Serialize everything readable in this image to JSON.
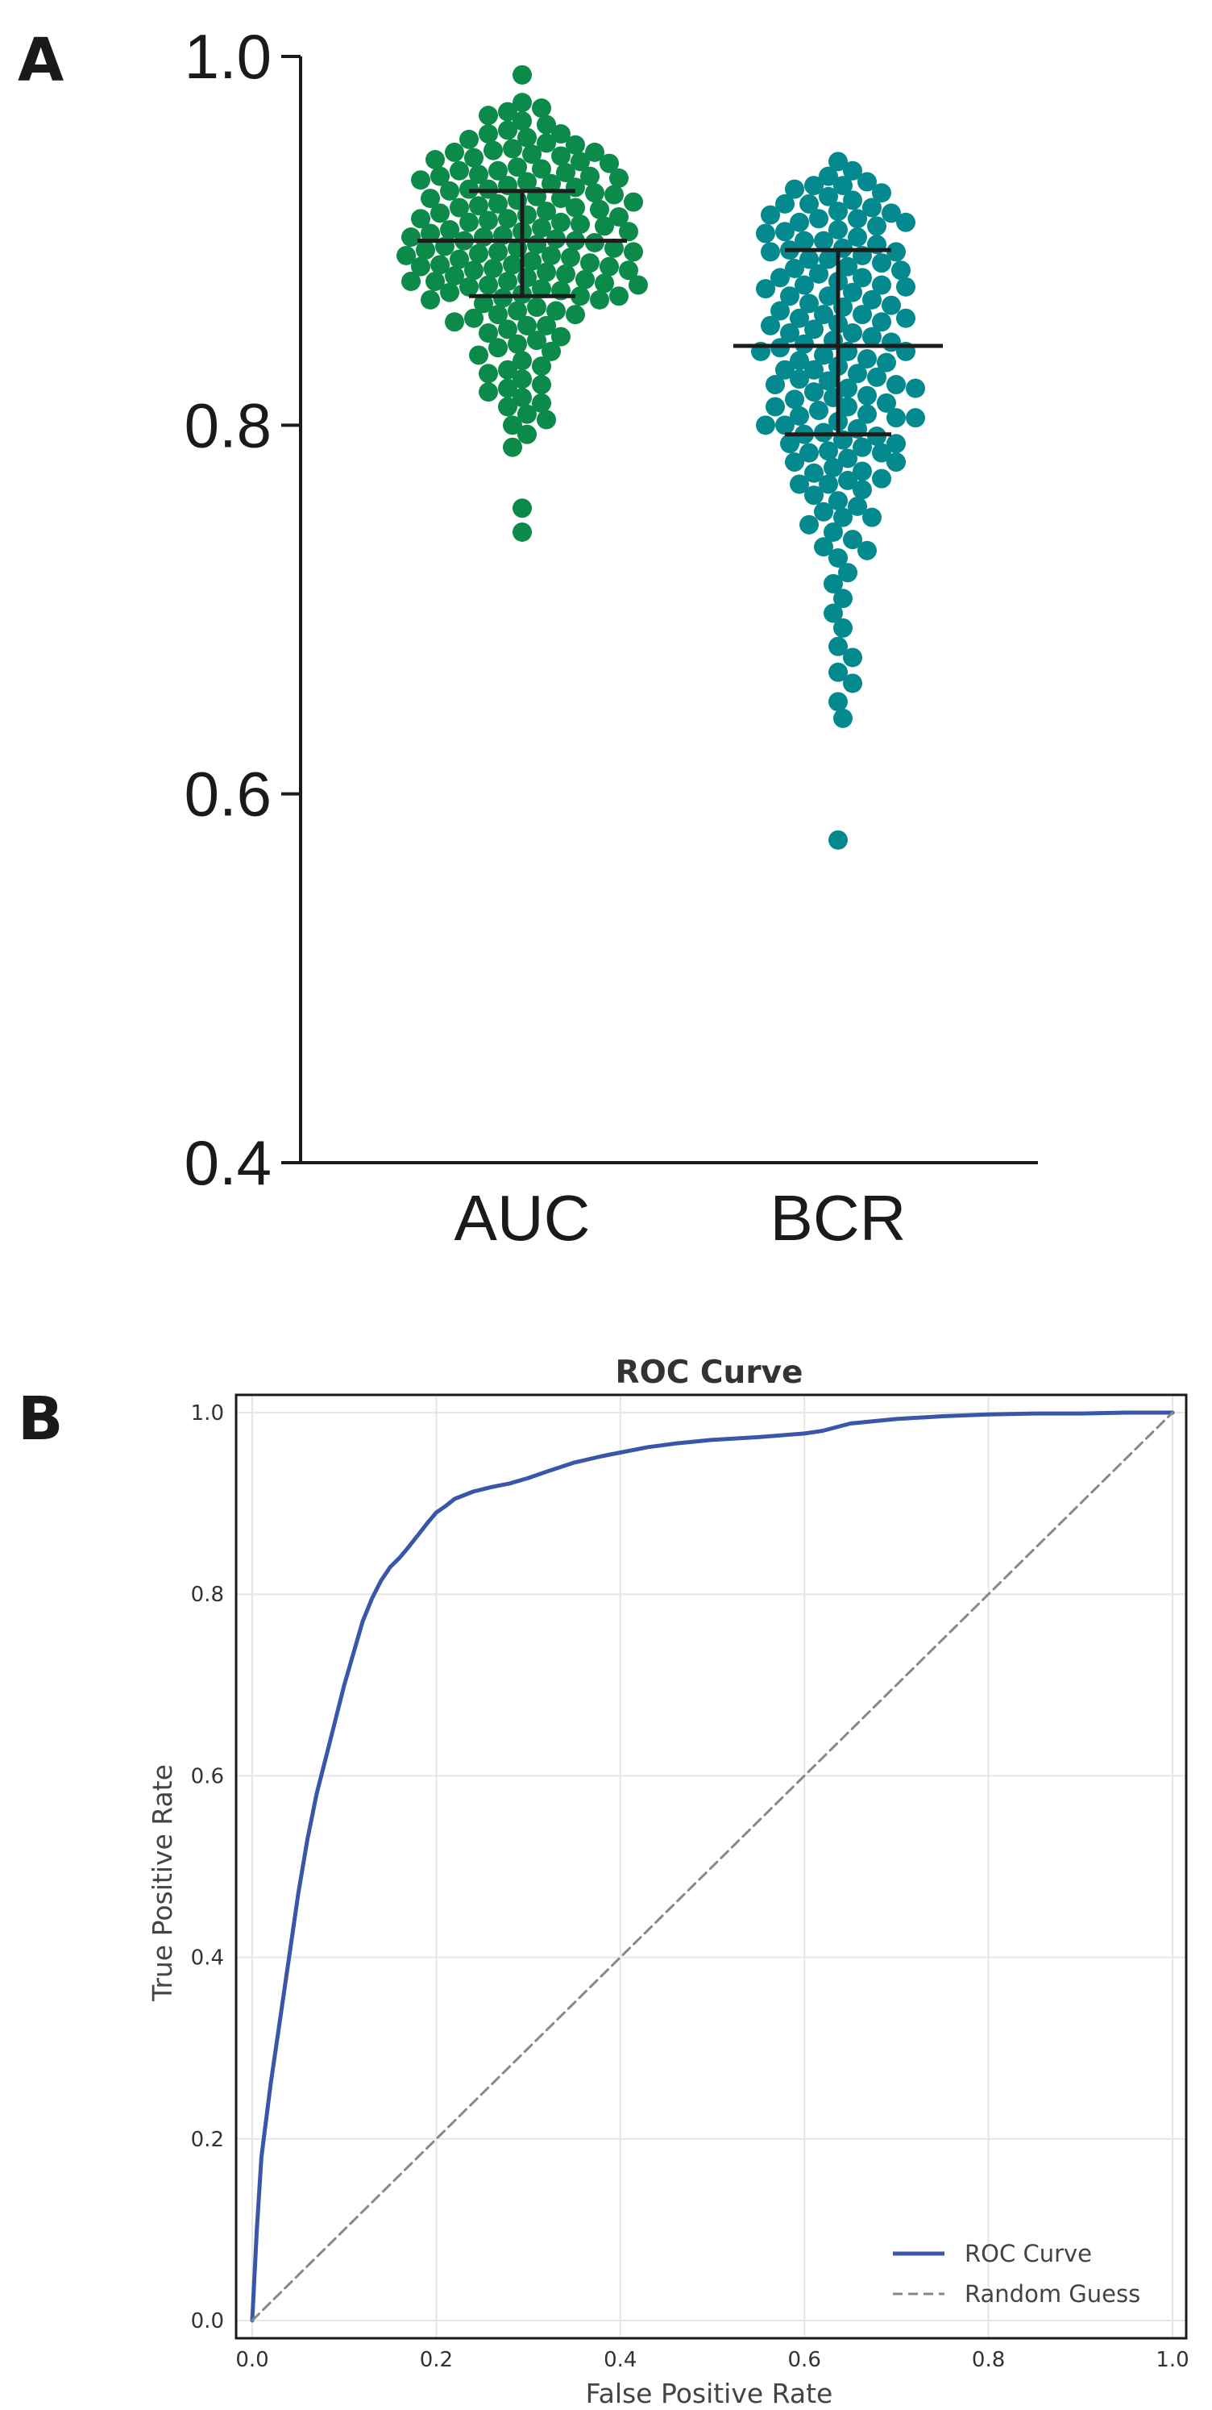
{
  "colors": {
    "auc": "#0b8a4a",
    "bcr": "#048a8e",
    "roc": "#3a56a8",
    "random": "#888888",
    "errorbar": "#1c1c1c",
    "grid": "#e6e6e6"
  },
  "panels": {
    "a_label": "A",
    "b_label": "B"
  },
  "chart_data": [
    {
      "type": "scatter",
      "subtype": "dot-plot with mean and SD error bars",
      "ylim": [
        0.4,
        1.0
      ],
      "yticks": [
        "0.4",
        "0.6",
        "0.8",
        "1.0"
      ],
      "categories": [
        "AUC",
        "BCR"
      ],
      "series": [
        {
          "name": "AUC",
          "mean": 0.9,
          "sd_low": 0.87,
          "sd_high": 0.927,
          "values": [
            0.99,
            0.975,
            0.972,
            0.97,
            0.968,
            0.965,
            0.963,
            0.96,
            0.958,
            0.956,
            0.955,
            0.953,
            0.952,
            0.95,
            0.949,
            0.948,
            0.947,
            0.945,
            0.944,
            0.943,
            0.942,
            0.94,
            0.939,
            0.938,
            0.937,
            0.936,
            0.935,
            0.934,
            0.933,
            0.932,
            0.931,
            0.93,
            0.929,
            0.928,
            0.927,
            0.926,
            0.925,
            0.924,
            0.923,
            0.922,
            0.921,
            0.92,
            0.919,
            0.918,
            0.917,
            0.916,
            0.915,
            0.914,
            0.913,
            0.912,
            0.911,
            0.91,
            0.909,
            0.908,
            0.907,
            0.906,
            0.905,
            0.904,
            0.903,
            0.902,
            0.901,
            0.9,
            0.899,
            0.898,
            0.897,
            0.896,
            0.895,
            0.894,
            0.893,
            0.892,
            0.891,
            0.89,
            0.889,
            0.888,
            0.887,
            0.886,
            0.885,
            0.884,
            0.883,
            0.882,
            0.881,
            0.88,
            0.879,
            0.878,
            0.877,
            0.876,
            0.875,
            0.874,
            0.873,
            0.872,
            0.871,
            0.87,
            0.868,
            0.866,
            0.864,
            0.862,
            0.86,
            0.858,
            0.856,
            0.854,
            0.852,
            0.85,
            0.848,
            0.846,
            0.844,
            0.842,
            0.84,
            0.838,
            0.835,
            0.832,
            0.83,
            0.828,
            0.825,
            0.822,
            0.82,
            0.818,
            0.815,
            0.812,
            0.81,
            0.806,
            0.803,
            0.8,
            0.795,
            0.788,
            0.755,
            0.742,
            0.912,
            0.905,
            0.896,
            0.887,
            0.878,
            0.869,
            0.923,
            0.935,
            0.946,
            0.9,
            0.892,
            0.884,
            0.876,
            0.868,
            0.86,
            0.918,
            0.928,
            0.938,
            0.948,
            0.958,
            0.91,
            0.902,
            0.894,
            0.886,
            0.878,
            0.87,
            0.862,
            0.854
          ],
          "color_key": "auc"
        },
        {
          "name": "BCR",
          "mean": 0.843,
          "sd_low": 0.795,
          "sd_high": 0.895,
          "values": [
            0.943,
            0.938,
            0.935,
            0.932,
            0.93,
            0.928,
            0.926,
            0.924,
            0.922,
            0.92,
            0.918,
            0.916,
            0.914,
            0.912,
            0.91,
            0.908,
            0.906,
            0.904,
            0.902,
            0.9,
            0.898,
            0.896,
            0.894,
            0.892,
            0.89,
            0.888,
            0.886,
            0.884,
            0.882,
            0.88,
            0.878,
            0.876,
            0.874,
            0.872,
            0.87,
            0.868,
            0.866,
            0.864,
            0.862,
            0.86,
            0.858,
            0.856,
            0.854,
            0.852,
            0.85,
            0.848,
            0.846,
            0.844,
            0.842,
            0.84,
            0.838,
            0.836,
            0.834,
            0.832,
            0.83,
            0.828,
            0.826,
            0.824,
            0.822,
            0.82,
            0.818,
            0.816,
            0.814,
            0.812,
            0.81,
            0.808,
            0.806,
            0.804,
            0.802,
            0.8,
            0.798,
            0.796,
            0.794,
            0.792,
            0.79,
            0.788,
            0.785,
            0.782,
            0.78,
            0.777,
            0.774,
            0.771,
            0.768,
            0.765,
            0.762,
            0.759,
            0.756,
            0.753,
            0.75,
            0.746,
            0.742,
            0.738,
            0.734,
            0.728,
            0.72,
            0.714,
            0.706,
            0.698,
            0.69,
            0.68,
            0.674,
            0.666,
            0.66,
            0.65,
            0.641,
            0.575,
            0.92,
            0.91,
            0.9,
            0.89,
            0.88,
            0.87,
            0.86,
            0.85,
            0.84,
            0.83,
            0.82,
            0.81,
            0.8,
            0.79,
            0.78,
            0.77,
            0.915,
            0.905,
            0.895,
            0.885,
            0.875,
            0.865,
            0.855,
            0.845,
            0.835,
            0.825,
            0.815,
            0.805,
            0.795,
            0.785,
            0.775,
            0.93,
            0.912,
            0.894,
            0.876,
            0.858,
            0.84,
            0.822,
            0.804,
            0.786,
            0.768,
            0.75,
            0.732
          ],
          "color_key": "bcr"
        }
      ]
    },
    {
      "type": "line",
      "title": "ROC Curve",
      "xlabel": "False Positive Rate",
      "ylabel": "True Positive Rate",
      "xlim": [
        0.0,
        1.0
      ],
      "ylim": [
        0.0,
        1.0
      ],
      "xticks": [
        "0.0",
        "0.2",
        "0.4",
        "0.6",
        "0.8",
        "1.0"
      ],
      "yticks": [
        "0.0",
        "0.2",
        "0.4",
        "0.6",
        "0.8",
        "1.0"
      ],
      "grid": true,
      "legend_position": "bottom-right",
      "series": [
        {
          "name": "ROC Curve",
          "style": "solid",
          "color_key": "roc",
          "x": [
            0.0,
            0.005,
            0.01,
            0.02,
            0.03,
            0.04,
            0.05,
            0.06,
            0.07,
            0.08,
            0.09,
            0.1,
            0.11,
            0.12,
            0.13,
            0.14,
            0.15,
            0.16,
            0.17,
            0.18,
            0.19,
            0.2,
            0.21,
            0.22,
            0.24,
            0.26,
            0.28,
            0.3,
            0.32,
            0.35,
            0.38,
            0.4,
            0.43,
            0.46,
            0.5,
            0.55,
            0.6,
            0.62,
            0.65,
            0.7,
            0.75,
            0.8,
            0.85,
            0.9,
            0.95,
            1.0
          ],
          "y": [
            0.0,
            0.1,
            0.18,
            0.26,
            0.33,
            0.4,
            0.47,
            0.53,
            0.58,
            0.62,
            0.66,
            0.7,
            0.735,
            0.77,
            0.795,
            0.815,
            0.83,
            0.84,
            0.852,
            0.865,
            0.878,
            0.89,
            0.897,
            0.905,
            0.913,
            0.918,
            0.922,
            0.928,
            0.935,
            0.945,
            0.952,
            0.956,
            0.962,
            0.966,
            0.97,
            0.973,
            0.977,
            0.98,
            0.988,
            0.993,
            0.996,
            0.998,
            0.999,
            0.999,
            1.0,
            1.0
          ]
        },
        {
          "name": "Random Guess",
          "style": "dashed",
          "color_key": "random",
          "x": [
            0.0,
            1.0
          ],
          "y": [
            0.0,
            1.0
          ]
        }
      ]
    }
  ]
}
